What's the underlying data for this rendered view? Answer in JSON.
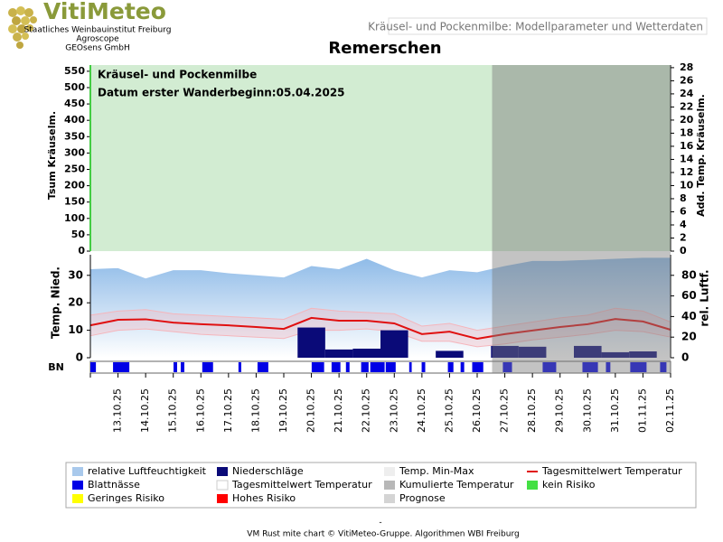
{
  "header": {
    "logo": "VitiMeteo",
    "org": [
      "Staatliches Weinbauinstitut Freiburg",
      "Agroscope",
      "GEOsens GmbH"
    ],
    "subtitle_box": "Kräusel- und Pockenmilbe: Modellparameter und Wetterdaten"
  },
  "chart_data": [
    {
      "type": "risk",
      "title": "Remerschen",
      "annotations": [
        "Kräusel- und Pockenmilbe",
        "Datum  erster Wanderbeginn:05.04.2025"
      ],
      "ylabel": "Tsum Kräuselm.",
      "y2label": "Add. Temp. Kräuselm.",
      "ylim": [
        0,
        569
      ],
      "yticks": [
        0,
        50,
        100,
        150,
        200,
        250,
        300,
        350,
        400,
        450,
        500,
        550
      ],
      "y2lim": [
        0,
        28.4
      ],
      "y2ticks": [
        0,
        2,
        4,
        6,
        8,
        10,
        12,
        14,
        16,
        18,
        20,
        22,
        24,
        26,
        28
      ],
      "background_color": "#d2ecd2"
    },
    {
      "type": "weather",
      "categories": [
        null,
        "13.10.25",
        "14.10.25",
        "15.10.25",
        "16.10.25",
        "17.10.25",
        "18.10.25",
        "19.10.25",
        "20.10.25",
        "21.10.25",
        "22.10.25",
        "23.10.25",
        "24.10.25",
        "25.10.25",
        "26.10.25",
        "27.10.25",
        "28.10.25",
        "29.10.25",
        "30.10.25",
        "31.10.25",
        "01.11.25",
        "02.11.25"
      ],
      "ylabel": "Temp. Nied.",
      "y2label": "rel. Luftf.",
      "ylim": [
        0,
        37.5
      ],
      "yticks": [
        0,
        10,
        20,
        30
      ],
      "y2lim": [
        0,
        100
      ],
      "y2ticks": [
        0,
        20,
        40,
        60,
        80
      ],
      "series": [
        {
          "name": "relative Luftfeuchtigkeit",
          "type": "area",
          "axis": "y2",
          "color": "#8fbbe8",
          "values": [
            86,
            87,
            77,
            85,
            85,
            82,
            80,
            78,
            89,
            86,
            96,
            85,
            78,
            85,
            83,
            89,
            94,
            94,
            95,
            96,
            97,
            97
          ]
        },
        {
          "name": "Temp. Min-Max",
          "type": "band",
          "color": "#f5b5bb",
          "min": [
            8,
            10,
            10.5,
            9.5,
            8.5,
            8,
            7.5,
            7,
            10,
            10,
            10.5,
            9.5,
            6,
            6,
            4,
            5,
            6.5,
            7.5,
            8.5,
            10,
            9.5,
            7.5
          ],
          "max": [
            15.5,
            17,
            17.5,
            16,
            15.5,
            15,
            14.5,
            14,
            18,
            17,
            16.5,
            16,
            11.5,
            12.5,
            10,
            11.5,
            13,
            14.5,
            15.5,
            18,
            17,
            13
          ]
        },
        {
          "name": "Niederschläge",
          "type": "bar",
          "color": "#0a0a78",
          "values": [
            0,
            0,
            0,
            0,
            0,
            0,
            0,
            0,
            11,
            3,
            3.3,
            10,
            0,
            2.5,
            0,
            4.3,
            4,
            0,
            4.3,
            2,
            2.3,
            0
          ]
        },
        {
          "name": "Tagesmittelwert Temperatur",
          "type": "line",
          "color": "#e01010",
          "values": [
            11.8,
            13.8,
            14,
            12.8,
            12.2,
            11.8,
            11.2,
            10.5,
            14.5,
            13.5,
            13.5,
            12.5,
            8.6,
            9.5,
            6.9,
            8.6,
            9.9,
            11.2,
            12.2,
            14.1,
            13.2,
            10.2
          ]
        }
      ],
      "leaf_wetness": {
        "label": "BN",
        "color": "#0000e6",
        "segments": [
          [
            0,
            0.2
          ],
          [
            0.82,
            1.41
          ],
          [
            3.01,
            3.14
          ],
          [
            3.27,
            3.4
          ],
          [
            4.05,
            4.44
          ],
          [
            5.36,
            5.46
          ],
          [
            6.05,
            6.44
          ],
          [
            8.01,
            8.46
          ],
          [
            8.73,
            9.05
          ],
          [
            9.25,
            9.38
          ],
          [
            9.8,
            10.07
          ],
          [
            10.13,
            10.65
          ],
          [
            10.69,
            11.05
          ],
          [
            11.54,
            11.63
          ],
          [
            11.99,
            12.12
          ],
          [
            12.94,
            13.14
          ],
          [
            13.4,
            13.53
          ],
          [
            13.82,
            14.22
          ],
          [
            14.93,
            15.26
          ],
          [
            16.37,
            16.86
          ],
          [
            17.81,
            18.37
          ],
          [
            18.66,
            18.82
          ],
          [
            19.54,
            20.13
          ],
          [
            20.62,
            20.85
          ]
        ]
      },
      "forecast_start": 14.54,
      "forecast_color": "#7a7a7a"
    }
  ],
  "legend": [
    {
      "name": "relative Luftfeuchtigkeit",
      "color": "#a9c9ec"
    },
    {
      "name": "Niederschläge",
      "color": "#0a0a78"
    },
    {
      "name": "Temp. Min-Max",
      "color": "#eeeeee"
    },
    {
      "name": "Tagesmittelwert Temperatur",
      "color": "#e01010",
      "shape": "line"
    },
    {
      "name": "Blattnässe",
      "color": "#0000e6"
    },
    {
      "name": "Tagesmittelwert Temperatur",
      "color": "#ffffff"
    },
    {
      "name": "Kumulierte Temperatur",
      "color": "#b8b8b8"
    },
    {
      "name": "kein Risiko",
      "color": "#44e044"
    },
    {
      "name": "Geringes Risiko",
      "color": "#ffff00"
    },
    {
      "name": "Hohes Risiko",
      "color": "#ff0000"
    },
    {
      "name": "Prognose",
      "color": "#d4d4d4"
    }
  ],
  "footer": {
    "dash": "-",
    "credit": "VM Rust mite chart © VitiMeteo-Gruppe. Algorithmen WBI Freiburg"
  }
}
